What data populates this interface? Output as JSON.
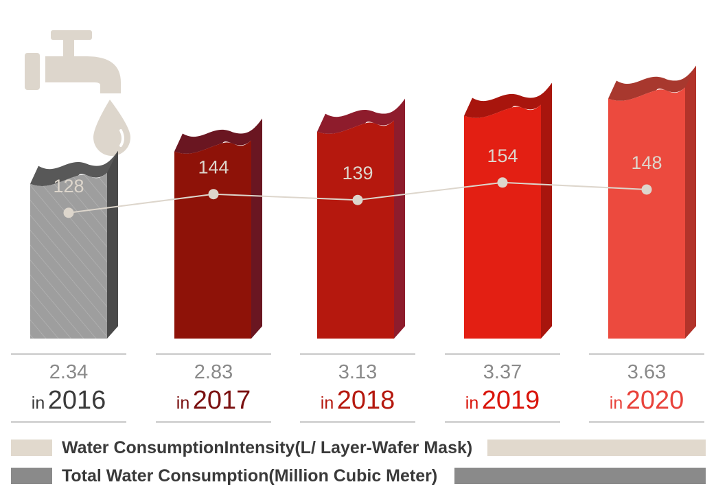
{
  "chart_data": {
    "type": "bar",
    "categories": [
      "2016",
      "2017",
      "2018",
      "2019",
      "2020"
    ],
    "year_prefix": "in",
    "series": [
      {
        "name": "Total Water Consumption(Million Cubic Meter)",
        "kind": "bar",
        "values": [
          2.34,
          2.83,
          3.13,
          3.37,
          3.63
        ]
      },
      {
        "name": "Water ConsumptionIntensity(L/ Layer-Wafer Mask)",
        "kind": "line",
        "values": [
          128,
          144,
          139,
          154,
          148
        ]
      }
    ],
    "bar_ylim": [
      0,
      4.05
    ],
    "line_ylim": [
      20,
      250
    ],
    "bar_colors": [
      {
        "front": "#9e9e9e",
        "side": "#4a4a4a",
        "top": "#585858"
      },
      {
        "front": "#8e1208",
        "side": "#6a1621",
        "top": "#6a1621"
      },
      {
        "front": "#b5180e",
        "side": "#8e1c2c",
        "top": "#8e1c2c"
      },
      {
        "front": "#e31f13",
        "side": "#a8150d",
        "top": "#a8150d"
      },
      {
        "front": "#ec4a3e",
        "side": "#b2332a",
        "top": "#a8382e"
      }
    ],
    "year_colors": [
      "#3a3a3a",
      "#7a1010",
      "#b5180e",
      "#d9140a",
      "#e8423a"
    ],
    "line_color": "#ddd6cc",
    "legend_colors": {
      "intensity": "#e1d9cd",
      "total": "#8a8a8a"
    },
    "icon": "water-tap-icon",
    "icon_color": "#ddd6cc"
  }
}
